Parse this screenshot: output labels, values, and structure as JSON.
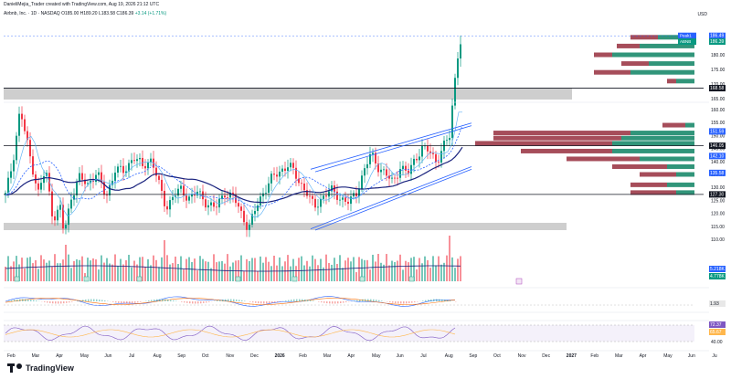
{
  "header": {
    "credit": "DanieliMejia_Trader created with TradingView.com, Aug 19, 2026 21:12 UTC",
    "symbol_line": "Airbnb, Inc. · 1D · NASDAQ",
    "ohlc": "O185.00 H189.20 L183.58 C186.39",
    "change": "+3.14 (+1.71%)"
  },
  "currency": "USD",
  "brand": {
    "name": "TradingView",
    "icon": "tradingview-logo-icon"
  },
  "price_axis": {
    "ticks": [
      "185.00",
      "180.00",
      "175.00",
      "170.00",
      "165.00",
      "160.00",
      "155.00",
      "150.00",
      "145.00",
      "140.00",
      "135.00",
      "130.00",
      "125.00",
      "120.00",
      "115.00",
      "110.00"
    ],
    "ranges": [
      [
        185,
        165
      ],
      [
        160,
        110
      ]
    ]
  },
  "price_tags": [
    {
      "text": "Peak1",
      "value": "186.49",
      "color": "#2962ff"
    },
    {
      "text": "ABNB",
      "value": "186.39",
      "color": "#089981"
    },
    {
      "text": "",
      "value": "168.58",
      "color": "#131722"
    },
    {
      "text": "",
      "value": "151.59",
      "color": "#2962ff"
    },
    {
      "text": "",
      "value": "146.05",
      "color": "#131722"
    },
    {
      "text": "",
      "value": "142.10",
      "color": "#2962ff"
    },
    {
      "text": "",
      "value": "135.58",
      "color": "#2962ff"
    },
    {
      "text": "",
      "value": "127.30",
      "color": "#131722"
    }
  ],
  "volume_tags": [
    {
      "value": "5.218K",
      "color": "#2962ff"
    },
    {
      "value": "4.778K",
      "color": "#089981"
    }
  ],
  "indicator_tags": [
    {
      "value": "1.93",
      "color": "#e8e8e8"
    },
    {
      "value": "72.37",
      "color": "#7e57c2"
    },
    {
      "value": "65.67",
      "color": "#ffb74d"
    }
  ],
  "rsi_axis": [
    "60.00",
    "40.00"
  ],
  "time_axis": [
    "Feb",
    "Mar",
    "Apr",
    "May",
    "Jun",
    "Jul",
    "Aug",
    "Sep",
    "Oct",
    "Nov",
    "Dec",
    "2026",
    "Feb",
    "Mar",
    "Apr",
    "May",
    "Jun",
    "Jul",
    "Aug",
    "Sep",
    "Oct",
    "Nov",
    "Dec",
    "2027",
    "Feb",
    "Mar",
    "Apr",
    "May",
    "Jun",
    "Ju"
  ],
  "colors": {
    "up": "#089981",
    "down": "#f23645",
    "profile_up": "#1b8a6b",
    "profile_down": "#9c3a48",
    "channel": "#2962ff",
    "ma_navy": "#1a237e",
    "zone_gray": "#bdbdbd"
  },
  "chart_data": {
    "type": "candlestick",
    "symbol": "ABNB",
    "exchange": "NASDAQ",
    "interval": "1D",
    "last": {
      "open": 185.0,
      "high": 189.2,
      "low": 183.58,
      "close": 186.39,
      "change": 3.14,
      "change_pct": 1.71
    },
    "levels": [
      186.49,
      168.58,
      151.59,
      146.05,
      142.1,
      135.58,
      127.3
    ],
    "close_path": [
      [
        0,
        127
      ],
      [
        8,
        140
      ],
      [
        16,
        160
      ],
      [
        22,
        150
      ],
      [
        28,
        140
      ],
      [
        36,
        128
      ],
      [
        44,
        137
      ],
      [
        52,
        118
      ],
      [
        60,
        122
      ],
      [
        64,
        112
      ],
      [
        72,
        126
      ],
      [
        80,
        134
      ],
      [
        90,
        131
      ],
      [
        100,
        136
      ],
      [
        110,
        126
      ],
      [
        120,
        137
      ],
      [
        130,
        136
      ],
      [
        140,
        142
      ],
      [
        150,
        138
      ],
      [
        160,
        141
      ],
      [
        168,
        131
      ],
      [
        176,
        122
      ],
      [
        184,
        127
      ],
      [
        192,
        129
      ],
      [
        200,
        126
      ],
      [
        210,
        128
      ],
      [
        220,
        124
      ],
      [
        230,
        122
      ],
      [
        240,
        128
      ],
      [
        250,
        126
      ],
      [
        258,
        120
      ],
      [
        266,
        114
      ],
      [
        274,
        122
      ],
      [
        282,
        128
      ],
      [
        290,
        133
      ],
      [
        300,
        136
      ],
      [
        310,
        139
      ],
      [
        320,
        133
      ],
      [
        330,
        128
      ],
      [
        338,
        122
      ],
      [
        346,
        126
      ],
      [
        356,
        129
      ],
      [
        366,
        126
      ],
      [
        376,
        124
      ],
      [
        384,
        128
      ],
      [
        392,
        136
      ],
      [
        400,
        143
      ],
      [
        408,
        138
      ],
      [
        416,
        135
      ],
      [
        424,
        132
      ],
      [
        432,
        138
      ],
      [
        440,
        135
      ],
      [
        448,
        141
      ],
      [
        456,
        145
      ],
      [
        464,
        144
      ],
      [
        472,
        140
      ],
      [
        480,
        146
      ],
      [
        486,
        150
      ],
      [
        490,
        165
      ],
      [
        494,
        179
      ],
      [
        497,
        183
      ],
      [
        500,
        186.39
      ]
    ]
  }
}
